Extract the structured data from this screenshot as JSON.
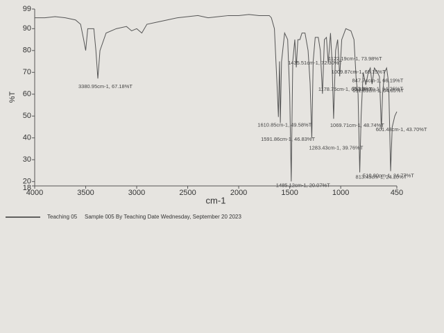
{
  "chart_data": {
    "type": "line",
    "xlabel": "cm-1",
    "ylabel": "%T",
    "xlim": [
      4000,
      450
    ],
    "ylim": [
      18,
      99
    ],
    "xticks": [
      4000,
      3500,
      3000,
      2500,
      2000,
      1500,
      1000,
      450
    ],
    "yticks": [
      18,
      20,
      30,
      40,
      50,
      60,
      70,
      80,
      90,
      99
    ],
    "color": "#555555",
    "x": [
      4000,
      3900,
      3800,
      3700,
      3600,
      3550,
      3520,
      3500,
      3480,
      3420,
      3400,
      3380.95,
      3360,
      3300,
      3200,
      3100,
      3050,
      3000,
      2950,
      2900,
      2800,
      2700,
      2600,
      2500,
      2400,
      2300,
      2200,
      2100,
      2000,
      1900,
      1800,
      1700,
      1680,
      1650,
      1620,
      1610.85,
      1600,
      1591.86,
      1580,
      1550,
      1520,
      1500,
      1485.12,
      1470,
      1450,
      1435.51,
      1420,
      1400,
      1380,
      1350,
      1320,
      1300,
      1283.43,
      1270,
      1250,
      1220,
      1200,
      1178.75,
      1160,
      1140,
      1122.19,
      1100,
      1085,
      1069.71,
      1050,
      1030,
      1009.87,
      990,
      950,
      900,
      870,
      847.74,
      830,
      813.45,
      800,
      780,
      753.86,
      730,
      710,
      692.81,
      670,
      640,
      620,
      601.48,
      590,
      570,
      550,
      530,
      510.8,
      495,
      470,
      450
    ],
    "values": [
      95,
      95,
      95.5,
      95,
      94,
      92,
      85,
      80,
      90,
      90,
      80,
      67.18,
      80,
      88,
      90,
      91,
      89,
      90,
      88,
      92,
      93,
      94,
      95,
      95.5,
      96,
      95,
      95.5,
      96,
      96,
      96.5,
      96,
      96,
      95,
      90,
      60,
      49.58,
      75,
      46.83,
      75,
      88,
      85,
      60,
      20.07,
      75,
      85,
      72.3,
      85,
      85,
      88,
      88,
      80,
      65,
      39.76,
      75,
      86,
      86,
      80,
      60.23,
      85,
      86,
      73.98,
      88,
      75,
      48.74,
      80,
      85,
      68.15,
      85,
      90,
      89,
      85,
      66.19,
      60,
      24.2,
      50,
      70,
      64.26,
      70,
      72,
      64.65,
      72,
      70,
      68,
      43.7,
      60,
      70,
      72,
      65,
      24.77,
      45,
      50,
      52
    ],
    "annotations": [
      {
        "text": "3380.95cm-1, 67.18%T",
        "x": 3380.95,
        "y": 67.18
      },
      {
        "text": "1610.85cm-1, 49.58%T",
        "x": 1610.85,
        "y": 49.58
      },
      {
        "text": "1591.86cm-1, 46.83%T",
        "x": 1591.86,
        "y": 46.83
      },
      {
        "text": "1485.12cm-1, 20.07%T",
        "x": 1485.12,
        "y": 20.07
      },
      {
        "text": "1435.51cm-1, 72.30%T",
        "x": 1435.51,
        "y": 72.3
      },
      {
        "text": "1283.43cm-1, 39.76%T",
        "x": 1283.43,
        "y": 39.76
      },
      {
        "text": "1178.75cm-1, 60.23%T",
        "x": 1178.75,
        "y": 60.23
      },
      {
        "text": "1122.19cm-1, 73.98%T",
        "x": 1122.19,
        "y": 73.98
      },
      {
        "text": "1069.71cm-1, 48.74%T",
        "x": 1069.71,
        "y": 48.74
      },
      {
        "text": "1009.87cm-1, 68.15%T",
        "x": 1009.87,
        "y": 68.15
      },
      {
        "text": "847.74cm-1, 66.19%T",
        "x": 847.74,
        "y": 66.19
      },
      {
        "text": "813.45cm-1, 24.20%T",
        "x": 813.45,
        "y": 24.2
      },
      {
        "text": "753.86cm-1, 64.26%T",
        "x": 753.86,
        "y": 64.26
      },
      {
        "text": "692.81cm-1, 64.65%T",
        "x": 692.81,
        "y": 64.65
      },
      {
        "text": "601.48cm-1, 43.70%T",
        "x": 601.48,
        "y": 43.7
      },
      {
        "text": "510.80cm-1, 24.77%T",
        "x": 510.8,
        "y": 24.77
      }
    ],
    "footer": {
      "legend_name": "Teaching 05",
      "sample_text": "Sample 005 By Teaching Date Wednesday, September 20 2023"
    }
  }
}
